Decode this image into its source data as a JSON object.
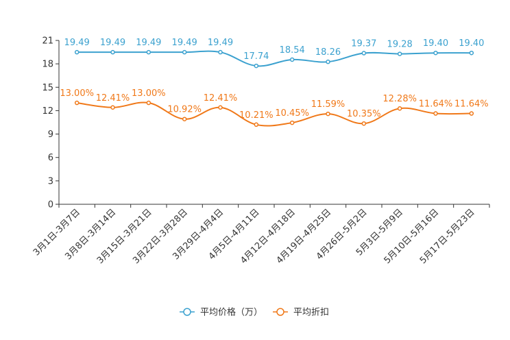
{
  "chart_data": {
    "type": "line",
    "categories": [
      "3月1日-3月7日",
      "3月8日-3月14日",
      "3月15日-3月21日",
      "3月22日-3月28日",
      "3月29日-4月4日",
      "4月5日-4月11日",
      "4月12日-4月18日",
      "4月19日-4月25日",
      "4月26日-5月2日",
      "5月3日-5月9日",
      "5月10日-5月16日",
      "5月17日-5月23日"
    ],
    "ylim": [
      0,
      21
    ],
    "yticks": [
      0,
      3,
      6,
      9,
      12,
      15,
      18,
      21
    ],
    "ytick_labels": [
      "0",
      "3",
      "6",
      "9",
      "12",
      "15",
      "18",
      "21"
    ],
    "series": [
      {
        "name": "平均价格（万）",
        "color": "#3ba1cf",
        "values": [
          19.49,
          19.49,
          19.49,
          19.49,
          19.49,
          17.74,
          18.54,
          18.26,
          19.37,
          19.28,
          19.4,
          19.4
        ],
        "labels": [
          "19.49",
          "19.49",
          "19.49",
          "19.49",
          "19.49",
          "17.74",
          "18.54",
          "18.26",
          "19.37",
          "19.28",
          "19.40",
          "19.40"
        ]
      },
      {
        "name": "平均折扣",
        "color": "#f07818",
        "values": [
          13.0,
          12.41,
          13.0,
          10.92,
          12.41,
          10.21,
          10.45,
          11.59,
          10.35,
          12.28,
          11.64,
          11.64
        ],
        "labels": [
          "13.00%",
          "12.41%",
          "13.00%",
          "10.92%",
          "12.41%",
          "10.21%",
          "10.45%",
          "11.59%",
          "10.35%",
          "12.28%",
          "11.64%",
          "11.64%"
        ]
      }
    ]
  }
}
